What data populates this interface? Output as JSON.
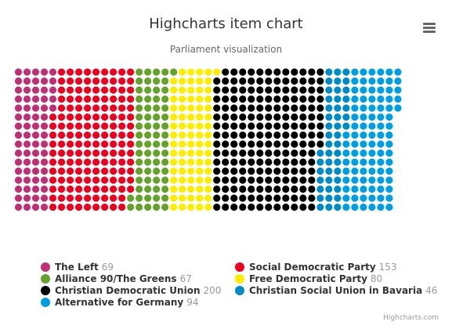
{
  "chart": {
    "title": "Highcharts item chart",
    "subtitle": "Parliament visualization",
    "credits": "Highcharts.com",
    "menu_icon": "hamburger-menu-icon"
  },
  "chart_data": {
    "type": "item",
    "title": "Highcharts item chart",
    "subtitle": "Parliament visualization",
    "legend_placement": "bottom",
    "series": [
      {
        "name": "The Left",
        "value": 69,
        "color": "#BE3075"
      },
      {
        "name": "Social Democratic Party",
        "value": 153,
        "color": "#EB001F"
      },
      {
        "name": "Alliance 90/The Greens",
        "value": 67,
        "color": "#64A12D"
      },
      {
        "name": "Free Democratic Party",
        "value": 80,
        "color": "#FFED00"
      },
      {
        "name": "Christian Democratic Union",
        "value": 200,
        "color": "#000000"
      },
      {
        "name": "Christian Social Union in Bavaria",
        "value": 46,
        "color": "#008AC5"
      },
      {
        "name": "Alternative for Germany",
        "value": 94,
        "color": "#009EE0"
      }
    ]
  }
}
